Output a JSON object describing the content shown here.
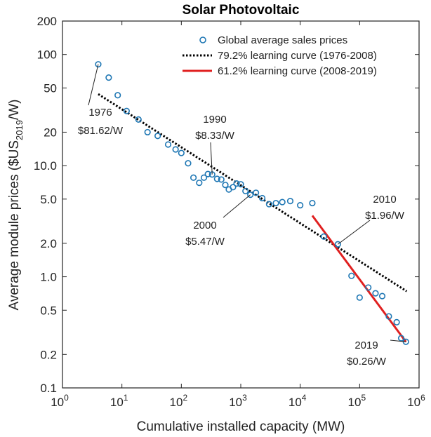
{
  "chart_data": {
    "type": "scatter",
    "title": "Solar Photovoltaic",
    "xlabel": "Cumulative installed capacity (MW)",
    "ylabel": {
      "main": "Average module prices ($US",
      "sub": "2019",
      "tail": "/W)"
    },
    "xscale": "log",
    "yscale": "log",
    "xlim": [
      1,
      1000000
    ],
    "ylim": [
      0.1,
      200
    ],
    "x_ticks": [
      {
        "value": 1,
        "base": "10",
        "exp": "0"
      },
      {
        "value": 10,
        "base": "10",
        "exp": "1"
      },
      {
        "value": 100,
        "base": "10",
        "exp": "2"
      },
      {
        "value": 1000,
        "base": "10",
        "exp": "3"
      },
      {
        "value": 10000,
        "base": "10",
        "exp": "4"
      },
      {
        "value": 100000,
        "base": "10",
        "exp": "5"
      },
      {
        "value": 1000000,
        "base": "10",
        "exp": "6"
      }
    ],
    "y_ticks": [
      {
        "value": 0.1,
        "label": "0.1"
      },
      {
        "value": 0.2,
        "label": "0.2"
      },
      {
        "value": 0.5,
        "label": "0.5"
      },
      {
        "value": 1,
        "label": "1.0"
      },
      {
        "value": 2,
        "label": "2.0"
      },
      {
        "value": 5,
        "label": "5.0"
      },
      {
        "value": 10,
        "label": "10.0"
      },
      {
        "value": 20,
        "label": "20"
      },
      {
        "value": 50,
        "label": "50"
      },
      {
        "value": 100,
        "label": "100"
      },
      {
        "value": 200,
        "label": "200"
      }
    ],
    "legend_position": "top-right",
    "series": [
      {
        "name": "Global average sales prices",
        "kind": "scatter",
        "color": "#1f77b4",
        "points": [
          [
            4.0,
            81.62
          ],
          [
            6.0,
            62
          ],
          [
            8.5,
            43
          ],
          [
            12,
            31
          ],
          [
            19,
            26
          ],
          [
            27,
            20
          ],
          [
            40,
            18.5
          ],
          [
            60,
            15.5
          ],
          [
            80,
            14
          ],
          [
            100,
            13
          ],
          [
            130,
            10.5
          ],
          [
            160,
            7.8
          ],
          [
            200,
            7.0
          ],
          [
            240,
            7.8
          ],
          [
            280,
            8.4
          ],
          [
            330,
            8.33
          ],
          [
            400,
            7.6
          ],
          [
            470,
            7.5
          ],
          [
            550,
            6.7
          ],
          [
            630,
            6.1
          ],
          [
            740,
            6.4
          ],
          [
            850,
            6.9
          ],
          [
            1000,
            6.8
          ],
          [
            1200,
            5.9
          ],
          [
            1450,
            5.47
          ],
          [
            1800,
            5.7
          ],
          [
            2300,
            5.1
          ],
          [
            3000,
            4.5
          ],
          [
            3900,
            4.6
          ],
          [
            5000,
            4.7
          ],
          [
            6800,
            4.8
          ],
          [
            10000,
            4.4
          ],
          [
            16000,
            4.6
          ],
          [
            25000,
            2.3
          ],
          [
            43000,
            1.96
          ],
          [
            73000,
            1.02
          ],
          [
            100000,
            0.65
          ],
          [
            140000,
            0.8
          ],
          [
            185000,
            0.71
          ],
          [
            240000,
            0.67
          ],
          [
            310000,
            0.44
          ],
          [
            420000,
            0.39
          ],
          [
            500000,
            0.28
          ],
          [
            600000,
            0.26
          ]
        ]
      },
      {
        "name": "79.2% learning curve (1976-2008)",
        "kind": "line",
        "color": "#000000",
        "style": "dotted",
        "points": [
          [
            4.0,
            44
          ],
          [
            620000,
            0.74
          ]
        ]
      },
      {
        "name": "61.2% learning curve (2008-2019)",
        "kind": "line",
        "color": "#e02020",
        "style": "solid",
        "points": [
          [
            16000,
            3.55
          ],
          [
            600000,
            0.26
          ]
        ]
      }
    ],
    "annotations": [
      {
        "year": "1976",
        "price": "$81.62/W",
        "x": 4.0,
        "y": 81.62
      },
      {
        "year": "1990",
        "price": "$8.33/W",
        "x": 330,
        "y": 8.33
      },
      {
        "year": "2000",
        "price": "$5.47/W",
        "x": 1450,
        "y": 5.47
      },
      {
        "year": "2010",
        "price": "$1.96/W",
        "x": 43000,
        "y": 1.96
      },
      {
        "year": "2019",
        "price": "$0.26/W",
        "x": 600000,
        "y": 0.26
      }
    ]
  }
}
